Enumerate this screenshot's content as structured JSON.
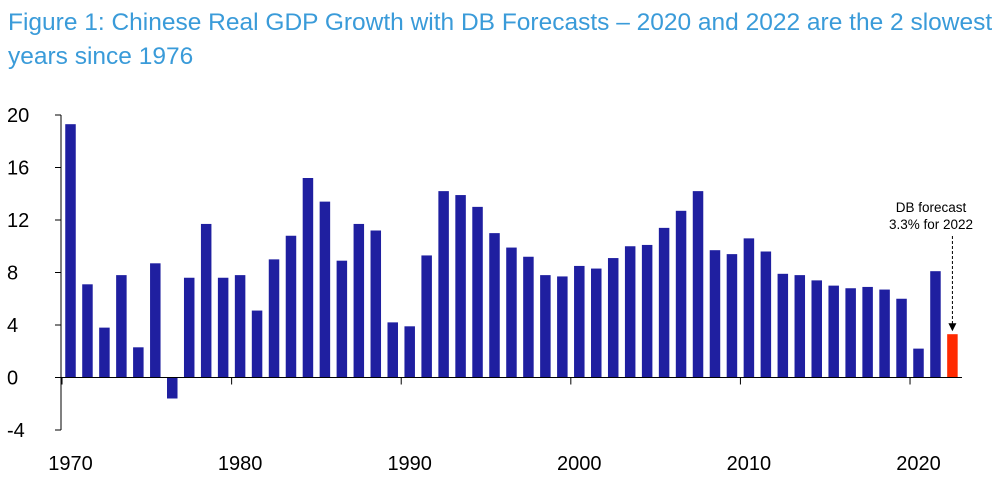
{
  "chart_data": {
    "type": "bar",
    "title": "Figure 1: Chinese Real GDP Growth with DB Forecasts – 2020 and 2022 are the 2 slowest years since 1976",
    "xlabel": "",
    "ylabel": "",
    "ylim": [
      -4,
      20
    ],
    "yticks": [
      "20",
      "16",
      "12",
      "8",
      "4",
      "0",
      "-4"
    ],
    "xticks": [
      "1970",
      "1980",
      "1990",
      "2000",
      "2010",
      "2020"
    ],
    "series": [
      {
        "name": "Real GDP growth",
        "color": "#1f1fa0",
        "x": [
          1970,
          1971,
          1972,
          1973,
          1974,
          1975,
          1976,
          1977,
          1978,
          1979,
          1980,
          1981,
          1982,
          1983,
          1984,
          1985,
          1986,
          1987,
          1988,
          1989,
          1990,
          1991,
          1992,
          1993,
          1994,
          1995,
          1996,
          1997,
          1998,
          1999,
          2000,
          2001,
          2002,
          2003,
          2004,
          2005,
          2006,
          2007,
          2008,
          2009,
          2010,
          2011,
          2012,
          2013,
          2014,
          2015,
          2016,
          2017,
          2018,
          2019,
          2020,
          2021
        ],
        "values": [
          19.3,
          7.1,
          3.8,
          7.8,
          2.3,
          8.7,
          -1.6,
          7.6,
          11.7,
          7.6,
          7.8,
          5.1,
          9.0,
          10.8,
          15.2,
          13.4,
          8.9,
          11.7,
          11.2,
          4.2,
          3.9,
          9.3,
          14.2,
          13.9,
          13.0,
          11.0,
          9.9,
          9.2,
          7.8,
          7.7,
          8.5,
          8.3,
          9.1,
          10.0,
          10.1,
          11.4,
          12.7,
          14.2,
          9.7,
          9.4,
          10.6,
          9.6,
          7.9,
          7.8,
          7.4,
          7.0,
          6.8,
          6.9,
          6.7,
          6.0,
          2.2,
          8.1
        ]
      },
      {
        "name": "DB forecast",
        "color": "#ff2a00",
        "x": [
          2022
        ],
        "values": [
          3.3
        ]
      }
    ],
    "annotation": {
      "line1": "DB forecast",
      "line2": "3.3% for 2022"
    }
  }
}
